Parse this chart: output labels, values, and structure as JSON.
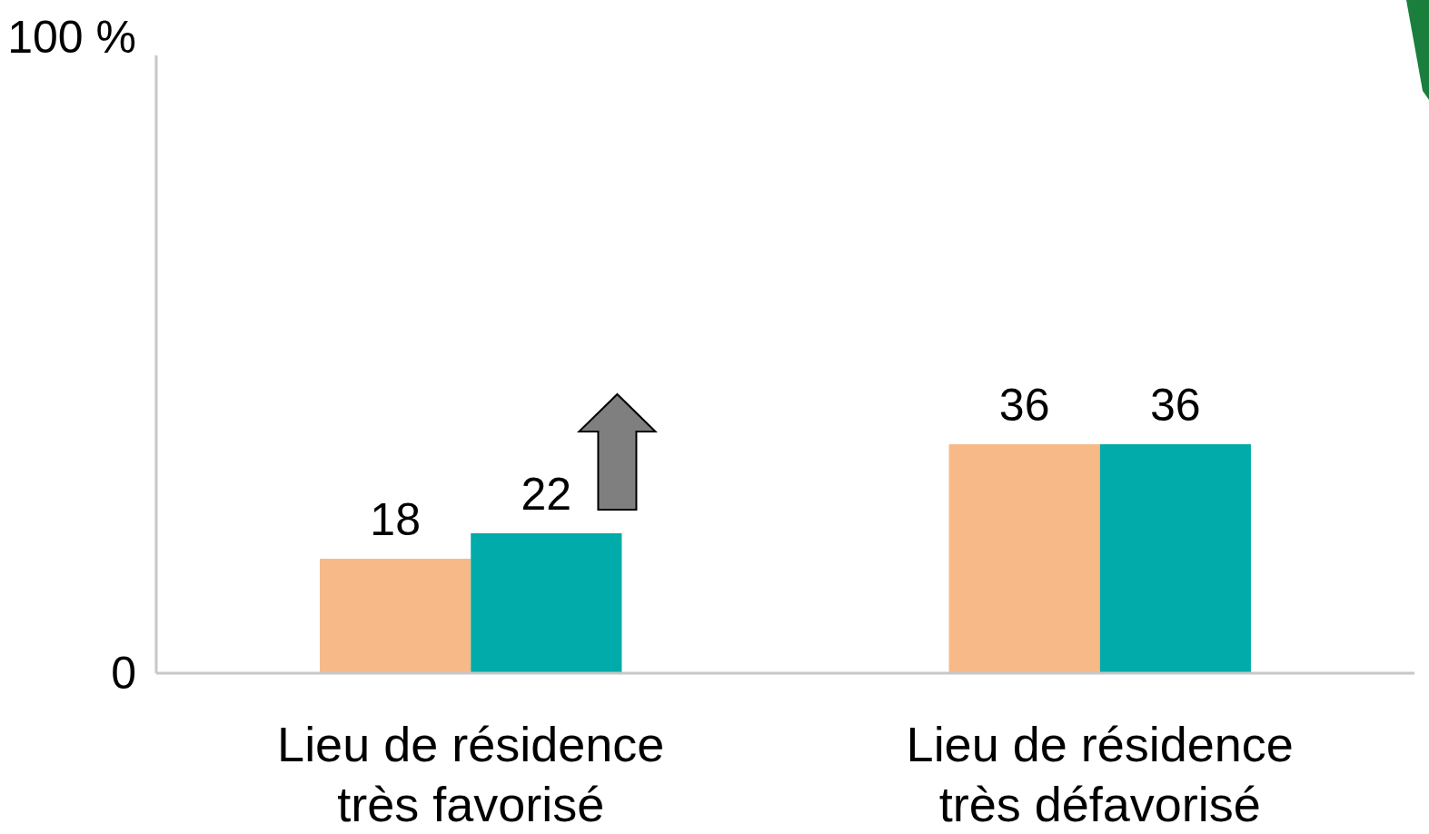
{
  "chart_data": {
    "type": "bar",
    "categories": [
      "Lieu de résidence\ntrès favorisé",
      "Lieu de résidence\ntrès défavorisé"
    ],
    "series": [
      {
        "color": "#f7b987",
        "values": [
          18,
          36
        ]
      },
      {
        "color": "#00aba9",
        "values": [
          22,
          36
        ]
      }
    ],
    "ylim": [
      0,
      100
    ],
    "yticks": [
      0,
      {
        "value": 100,
        "label": "100 %"
      }
    ],
    "data_labels": true,
    "grid": false
  }
}
